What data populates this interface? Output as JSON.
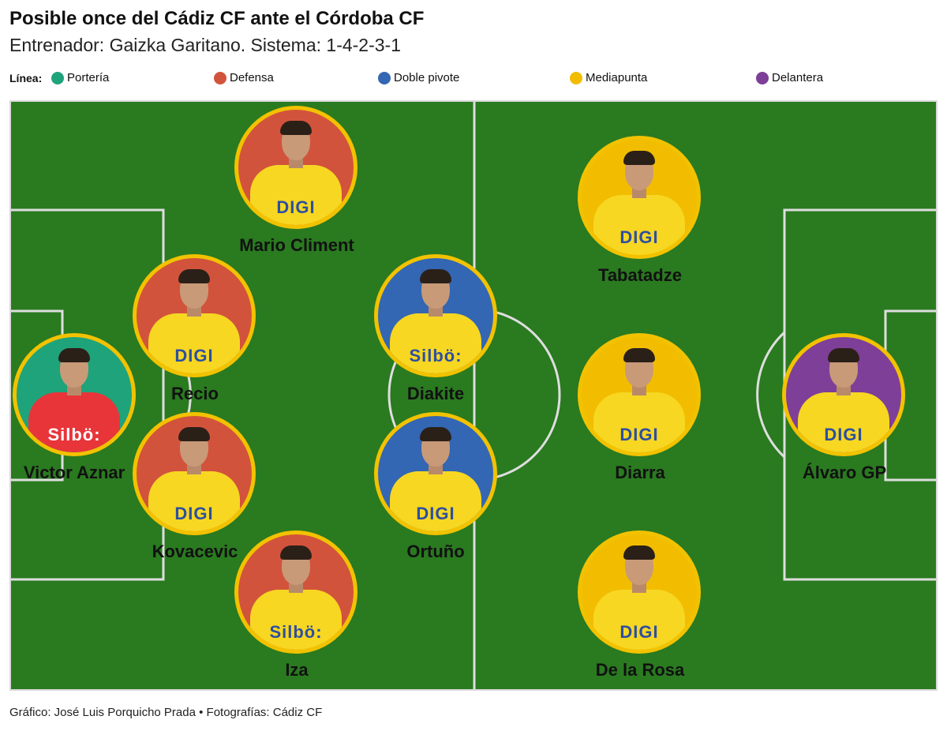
{
  "header": {
    "title": "Posible once del Cádiz CF ante el Córdoba CF",
    "subtitle": "Entrenador: Gaizka Garitano. Sistema: 1-4-2-3-1"
  },
  "legend": {
    "label": "Línea:",
    "items": [
      {
        "label": "Portería",
        "color": "#1fa37a"
      },
      {
        "label": "Defensa",
        "color": "#d2533c"
      },
      {
        "label": "Doble pivote",
        "color": "#3366b3"
      },
      {
        "label": "Mediapunta",
        "color": "#f2bd00"
      },
      {
        "label": "Delantera",
        "color": "#7e3f98"
      }
    ]
  },
  "pitch": {
    "grass_color": "#2a7a20",
    "line_color": "#dedede"
  },
  "players": [
    {
      "name": "Mario Climent",
      "line": "Defensa",
      "color": "#d2533c",
      "sponsor": "DIGI",
      "kit": "#f7d722"
    },
    {
      "name": "Recio",
      "line": "Defensa",
      "color": "#d2533c",
      "sponsor": "DIGI",
      "kit": "#f7d722"
    },
    {
      "name": "Victor Aznar",
      "line": "Portería",
      "color": "#1fa37a",
      "sponsor": "Silbö:",
      "kit": "#e8353a"
    },
    {
      "name": "Kovacevic",
      "line": "Defensa",
      "color": "#d2533c",
      "sponsor": "DIGI",
      "kit": "#f7d722"
    },
    {
      "name": "Iza",
      "line": "Defensa",
      "color": "#d2533c",
      "sponsor": "Silbö:",
      "kit": "#f7d722"
    },
    {
      "name": "Diakite",
      "line": "Doble pivote",
      "color": "#3366b3",
      "sponsor": "Silbö:",
      "kit": "#f7d722"
    },
    {
      "name": "Ortuño",
      "line": "Doble pivote",
      "color": "#3366b3",
      "sponsor": "DIGI",
      "kit": "#f7d722"
    },
    {
      "name": "Tabatadze",
      "line": "Mediapunta",
      "color": "#f2bd00",
      "sponsor": "DIGI",
      "kit": "#f7d722"
    },
    {
      "name": "Diarra",
      "line": "Mediapunta",
      "color": "#f2bd00",
      "sponsor": "DIGI",
      "kit": "#f7d722"
    },
    {
      "name": "De la Rosa",
      "line": "Mediapunta",
      "color": "#f2bd00",
      "sponsor": "DIGI",
      "kit": "#f7d722"
    },
    {
      "name": "Álvaro GP",
      "line": "Delantera",
      "color": "#7e3f98",
      "sponsor": "DIGI",
      "kit": "#f7d722"
    }
  ],
  "footer": {
    "credit": "Gráfico: José Luis Porquicho Prada • Fotografías: Cádiz CF"
  }
}
